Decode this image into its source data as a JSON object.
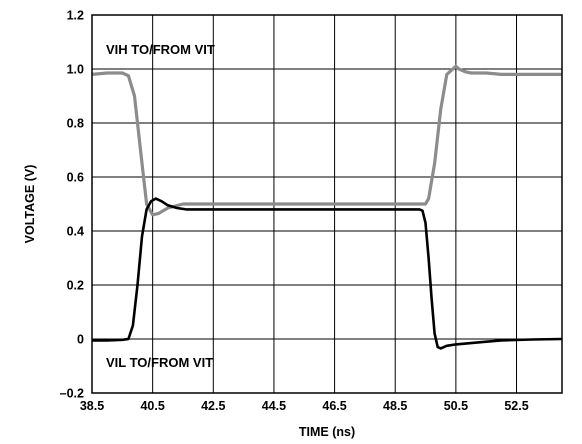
{
  "chart_data": {
    "type": "line",
    "xlabel": "TIME (ns)",
    "ylabel": "VOLTAGE (V)",
    "xlim": [
      38.5,
      54.0
    ],
    "ylim": [
      -0.2,
      1.2
    ],
    "x_ticks": [
      38.5,
      40.5,
      42.5,
      44.5,
      46.5,
      48.5,
      50.5,
      52.5
    ],
    "x_tick_labels": [
      "38.5",
      "40.5",
      "42.5",
      "44.5",
      "46.5",
      "48.5",
      "50.5",
      "52.5"
    ],
    "y_ticks": [
      -0.2,
      0,
      0.2,
      0.4,
      0.6,
      0.8,
      1.0,
      1.2
    ],
    "y_tick_labels": [
      "–0.2",
      "0",
      "0.2",
      "0.4",
      "0.6",
      "0.8",
      "1.0",
      "1.2"
    ],
    "grid": true,
    "annotations": [
      "VIH TO/FROM VIT",
      "VIL TO/FROM VIT"
    ],
    "series": [
      {
        "color": "#8c8c8c",
        "x": [
          38.5,
          39.0,
          39.5,
          39.7,
          39.9,
          40.1,
          40.3,
          40.5,
          40.7,
          41.0,
          41.5,
          42.0,
          43.0,
          44.0,
          45.0,
          46.0,
          47.0,
          48.0,
          49.0,
          49.3,
          49.5,
          49.6,
          49.8,
          50.0,
          50.2,
          50.4,
          50.5,
          50.6,
          50.8,
          51.0,
          51.5,
          52.0,
          53.0,
          54.0
        ],
        "values": [
          0.98,
          0.985,
          0.985,
          0.975,
          0.9,
          0.7,
          0.5,
          0.46,
          0.465,
          0.485,
          0.5,
          0.5,
          0.5,
          0.5,
          0.5,
          0.5,
          0.5,
          0.5,
          0.5,
          0.5,
          0.5,
          0.52,
          0.65,
          0.85,
          0.98,
          1.0,
          1.01,
          1.0,
          0.99,
          0.985,
          0.985,
          0.98,
          0.98,
          0.98
        ]
      },
      {
        "color": "#000000",
        "x": [
          38.5,
          39.0,
          39.5,
          39.7,
          39.85,
          40.0,
          40.15,
          40.3,
          40.45,
          40.6,
          40.8,
          41.0,
          41.3,
          41.6,
          42.0,
          43.0,
          44.0,
          45.0,
          46.0,
          47.0,
          48.0,
          49.0,
          49.3,
          49.4,
          49.5,
          49.6,
          49.7,
          49.8,
          49.9,
          50.0,
          50.2,
          50.5,
          51.0,
          51.5,
          52.0,
          53.0,
          54.0
        ],
        "values": [
          -0.005,
          -0.005,
          -0.003,
          0.0,
          0.05,
          0.2,
          0.38,
          0.48,
          0.51,
          0.52,
          0.51,
          0.495,
          0.485,
          0.48,
          0.48,
          0.48,
          0.48,
          0.48,
          0.48,
          0.48,
          0.48,
          0.48,
          0.48,
          0.475,
          0.43,
          0.3,
          0.15,
          0.02,
          -0.03,
          -0.035,
          -0.025,
          -0.02,
          -0.015,
          -0.01,
          -0.005,
          -0.002,
          0.0
        ]
      }
    ]
  }
}
